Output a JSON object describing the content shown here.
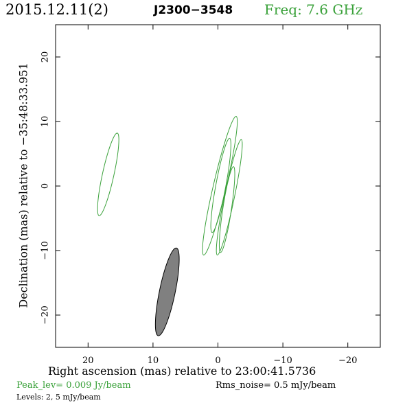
{
  "header": {
    "date": "2015.12.11(2)",
    "source": "J2300−3548",
    "freq": "Freq: 7.6 GHz"
  },
  "footer": {
    "peak": "Peak_lev=  0.009 Jy/beam",
    "rms": "Rms_noise=  0.5 mJy/beam",
    "levels": "Levels:   2,    5 mJy/beam"
  },
  "colors": {
    "contour": "#3aa13a",
    "beam": "#808080",
    "axes": "#000000"
  },
  "chart_data": {
    "type": "contour",
    "title": "J2300−3548",
    "xlabel": "Right ascension (mas) relative to 23:00:41.5736",
    "ylabel": "Declination (mas) relative to −35:48:33.951",
    "xlim": [
      25,
      -25
    ],
    "ylim": [
      -25,
      25
    ],
    "xticks": [
      20,
      10,
      0,
      -10,
      -20
    ],
    "xtick_labels": [
      "20",
      "10",
      "0",
      "−10",
      "−20"
    ],
    "yticks": [
      20,
      10,
      0,
      -10,
      -20
    ],
    "ytick_labels": [
      "20",
      "10",
      "0",
      "−10",
      "−20"
    ],
    "levels_mJy_per_beam": [
      2,
      5
    ],
    "contours": [
      {
        "name": "component-west",
        "center": [
          16.9,
          1.8
        ],
        "end_a": [
          15.5,
          8.2
        ],
        "end_b": [
          18.3,
          -4.6
        ],
        "half_width": 0.4
      },
      {
        "name": "core-outer",
        "center": [
          0.3,
          0.0
        ],
        "end_a": [
          -2.8,
          10.8
        ],
        "end_b": [
          2.2,
          -10.7
        ],
        "half_width": 0.45
      },
      {
        "name": "core-inner-a",
        "center": [
          0.6,
          -0.2
        ],
        "end_a": [
          -1.8,
          7.4
        ],
        "end_b": [
          0.9,
          -7.2
        ],
        "half_width": 0.35
      },
      {
        "name": "core-inner-b",
        "center": [
          -2.0,
          -1.5
        ],
        "end_a": [
          -3.6,
          7.2
        ],
        "end_b": [
          0.1,
          -10.7
        ],
        "half_width": 0.35
      },
      {
        "name": "core-inner-c",
        "center": [
          -1.2,
          -4.0
        ],
        "end_a": [
          -2.4,
          3.0
        ],
        "end_b": [
          -0.4,
          -10.3
        ],
        "half_width": 0.3
      }
    ],
    "beam": {
      "center": [
        7.8,
        -16.2
      ],
      "end_a": [
        6.4,
        -9.6
      ],
      "end_b": [
        9.2,
        -23.2
      ],
      "half_width": 0.55
    }
  }
}
